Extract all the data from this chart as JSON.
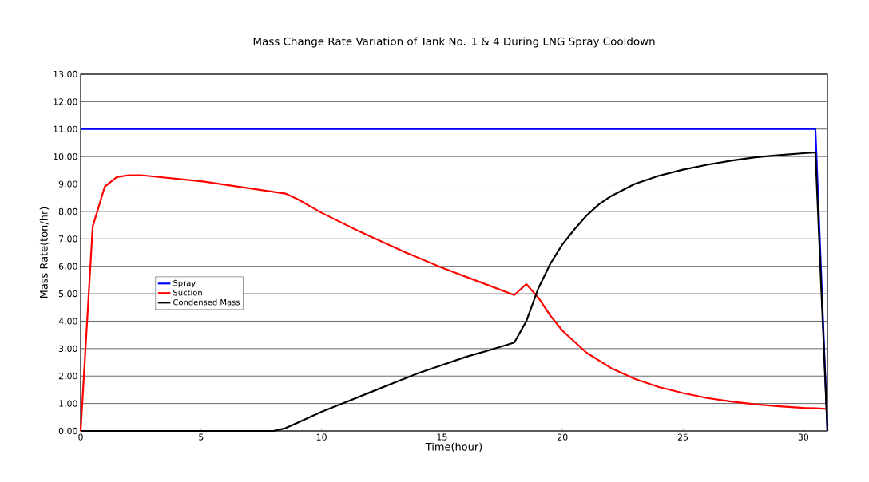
{
  "chart_data": {
    "type": "line",
    "title": "Mass Change Rate Variation of Tank No. 1 & 4 During LNG Spray Cooldown",
    "xlabel": "Time(hour)",
    "ylabel": "Mass Rate(ton/hr)",
    "xlim": [
      0,
      31
    ],
    "xticks": [
      0,
      5,
      10,
      15,
      20,
      25,
      30
    ],
    "ylim": [
      0,
      13
    ],
    "yticks": [
      {
        "value": 0,
        "label": "0.00"
      },
      {
        "value": 1,
        "label": "1.00"
      },
      {
        "value": 2,
        "label": "2.00"
      },
      {
        "value": 3,
        "label": "3.00"
      },
      {
        "value": 4,
        "label": "4.00"
      },
      {
        "value": 5,
        "label": "5.00"
      },
      {
        "value": 6,
        "label": "6.00"
      },
      {
        "value": 7,
        "label": "7.00"
      },
      {
        "value": 8,
        "label": "8.00"
      },
      {
        "value": 9,
        "label": "9.00"
      },
      {
        "value": 10,
        "label": "10.00"
      },
      {
        "value": 11,
        "label": "11.00"
      },
      {
        "value": 12,
        "label": "12.00"
      },
      {
        "value": 13,
        "label": "13.00"
      }
    ],
    "grid": "y",
    "legend": "left",
    "marker": "none",
    "line_style": "solid",
    "series": [
      {
        "name": "Spray",
        "color": "#0000ff",
        "x": [
          0,
          30.5,
          31
        ],
        "values": [
          11,
          11,
          0
        ]
      },
      {
        "name": "Suction",
        "color": "#ff0000",
        "x": [
          0,
          0.5,
          1,
          1.5,
          2,
          2.5,
          5,
          8.5,
          9,
          10,
          11.5,
          13.5,
          15,
          16.5,
          18,
          18.5,
          19,
          19.5,
          20,
          21,
          22,
          23,
          24,
          25,
          26,
          27,
          28,
          29,
          30,
          30.7,
          31
        ],
        "values": [
          0,
          7.45,
          8.9,
          9.25,
          9.32,
          9.32,
          9.1,
          8.65,
          8.45,
          7.95,
          7.3,
          6.5,
          5.95,
          5.45,
          4.95,
          5.35,
          4.85,
          4.2,
          3.65,
          2.85,
          2.3,
          1.9,
          1.6,
          1.38,
          1.2,
          1.07,
          0.97,
          0.9,
          0.84,
          0.82,
          0.8
        ]
      },
      {
        "name": "Condensed Mass",
        "color": "#000000",
        "x": [
          0,
          8,
          8.5,
          9,
          10,
          11,
          12,
          13,
          14,
          15,
          16,
          17,
          18,
          18.5,
          19,
          19.5,
          20,
          20.5,
          21,
          21.5,
          22,
          23,
          24,
          25,
          26,
          27,
          28,
          29,
          30,
          30.5,
          31
        ],
        "values": [
          0,
          0,
          0.1,
          0.3,
          0.7,
          1.05,
          1.4,
          1.75,
          2.1,
          2.4,
          2.7,
          2.95,
          3.22,
          4.0,
          5.2,
          6.1,
          6.8,
          7.35,
          7.85,
          8.25,
          8.55,
          9.0,
          9.3,
          9.52,
          9.7,
          9.85,
          9.97,
          10.05,
          10.12,
          10.15,
          0
        ]
      }
    ]
  }
}
